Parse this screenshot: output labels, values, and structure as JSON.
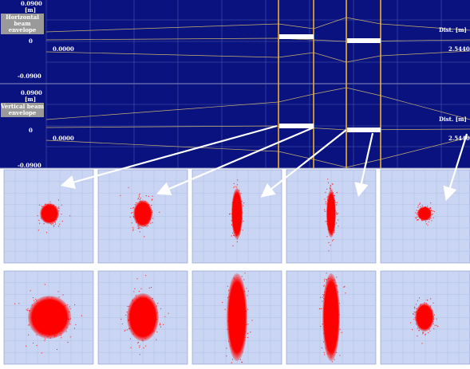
{
  "panels": [
    {
      "y_max": "0.0900",
      "unit": "[m]",
      "label": "Horizontal beam envelope",
      "zero": "0",
      "start": "0.0000",
      "dist_label": "Dist. [m]",
      "end": "2.5440",
      "y_min": "-0.0900"
    },
    {
      "y_max": "0.0900",
      "unit": "[m]",
      "label": "Vertical beam envelope",
      "zero": "0",
      "start": "0.0000",
      "dist_label": "Dist. [m]",
      "end": "2.5440",
      "y_min": "-0.0900"
    }
  ]
}
